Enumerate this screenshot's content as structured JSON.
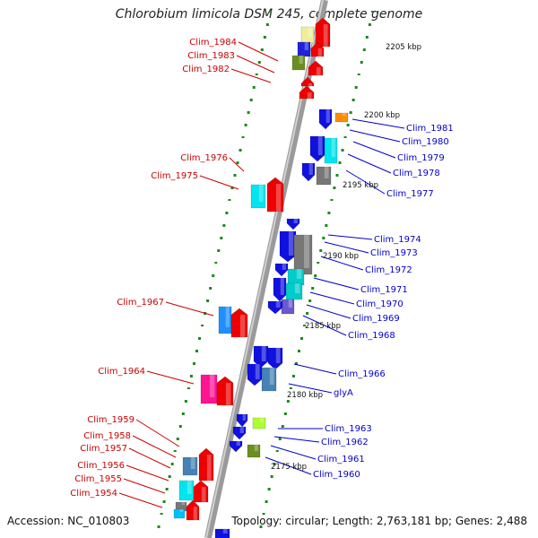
{
  "title": "Chlorobium limicola DSM 245, complete genome",
  "accession": "Accession: NC_010803",
  "topology": "Topology: circular; Length: 2,763,181 bp; Genes: 2,488",
  "tick_labels": [
    "2205 kbp",
    "2200 kbp",
    "2195 kbp",
    "2190 kbp",
    "2185 kbp",
    "2180 kbp",
    "2175 kbp"
  ],
  "left_gene_labels": [
    "Clim_1984",
    "Clim_1983",
    "Clim_1982",
    "Clim_1976",
    "Clim_1975",
    "Clim_1967",
    "Clim_1964",
    "Clim_1959",
    "Clim_1958",
    "Clim_1957",
    "Clim_1956",
    "Clim_1955",
    "Clim_1954"
  ],
  "right_gene_labels": [
    "Clim_1981",
    "Clim_1980",
    "Clim_1979",
    "Clim_1978",
    "Clim_1977",
    "Clim_1974",
    "Clim_1973",
    "Clim_1972",
    "Clim_1971",
    "Clim_1970",
    "Clim_1969",
    "Clim_1968",
    "Clim_1966",
    "glyA",
    "Clim_1963",
    "Clim_1962",
    "Clim_1961",
    "Clim_1960"
  ],
  "colors": {
    "left_strand_label": "#cc0000",
    "right_strand_label": "#0000cc",
    "backbone": "#8c8c8c",
    "tick": "#1a8a1a"
  }
}
